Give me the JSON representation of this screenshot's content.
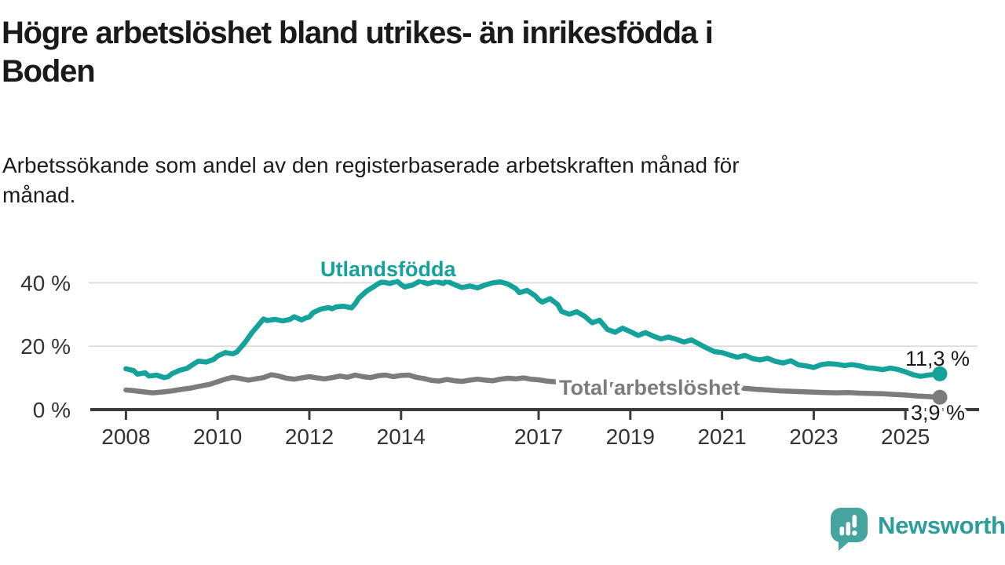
{
  "header": {
    "title": "Högre arbetslöshet bland utrikes- än inrikesfödda i\nBoden",
    "subtitle": "Arbetssökande som andel av den registerbaserade arbetskraften månad för\nmånad."
  },
  "chart_data": {
    "type": "line",
    "title": "Högre arbetslöshet bland utrikes- än inrikesfödda i Boden",
    "subtitle": "Arbetssökande som andel av den registerbaserade arbetskraften månad för månad.",
    "xlabel": "",
    "ylabel": "",
    "xlim": [
      2008,
      2025.75
    ],
    "ylim": [
      0,
      44
    ],
    "grid": "horizontal",
    "legend_position": "inline-labels",
    "x_ticks": [
      {
        "year": 2008,
        "label": "2008"
      },
      {
        "year": 2010,
        "label": "2010"
      },
      {
        "year": 2012,
        "label": "2012"
      },
      {
        "year": 2014,
        "label": "2014"
      },
      {
        "year": 2017,
        "label": "2017"
      },
      {
        "year": 2019,
        "label": "2019"
      },
      {
        "year": 2021,
        "label": "2021"
      },
      {
        "year": 2023,
        "label": "2023"
      },
      {
        "year": 2025,
        "label": "2025"
      }
    ],
    "y_ticks": [
      {
        "value": 0,
        "label": "0 %"
      },
      {
        "value": 20,
        "label": "20 %"
      },
      {
        "value": 40,
        "label": "40 %"
      }
    ],
    "series": [
      {
        "name": "Total arbetslöshet",
        "color": "#7c7c7c",
        "end_label": "3,9 %",
        "end_value": 3.9,
        "points": [
          [
            2008.0,
            6.2
          ],
          [
            2008.17,
            6.0
          ],
          [
            2008.33,
            5.7
          ],
          [
            2008.58,
            5.3
          ],
          [
            2008.83,
            5.6
          ],
          [
            2009.0,
            5.9
          ],
          [
            2009.17,
            6.3
          ],
          [
            2009.42,
            6.8
          ],
          [
            2009.58,
            7.3
          ],
          [
            2009.83,
            8.0
          ],
          [
            2010.0,
            8.8
          ],
          [
            2010.17,
            9.6
          ],
          [
            2010.33,
            10.2
          ],
          [
            2010.5,
            9.8
          ],
          [
            2010.67,
            9.3
          ],
          [
            2010.83,
            9.7
          ],
          [
            2011.0,
            10.1
          ],
          [
            2011.17,
            11.0
          ],
          [
            2011.33,
            10.6
          ],
          [
            2011.5,
            9.9
          ],
          [
            2011.67,
            9.6
          ],
          [
            2011.83,
            10.0
          ],
          [
            2012.0,
            10.4
          ],
          [
            2012.17,
            10.0
          ],
          [
            2012.33,
            9.7
          ],
          [
            2012.5,
            10.1
          ],
          [
            2012.67,
            10.6
          ],
          [
            2012.83,
            10.2
          ],
          [
            2013.0,
            10.9
          ],
          [
            2013.17,
            10.4
          ],
          [
            2013.33,
            10.1
          ],
          [
            2013.5,
            10.7
          ],
          [
            2013.67,
            10.9
          ],
          [
            2013.83,
            10.4
          ],
          [
            2014.0,
            10.8
          ],
          [
            2014.17,
            10.9
          ],
          [
            2014.33,
            10.2
          ],
          [
            2014.5,
            9.8
          ],
          [
            2014.67,
            9.2
          ],
          [
            2014.83,
            9.0
          ],
          [
            2015.0,
            9.5
          ],
          [
            2015.17,
            9.1
          ],
          [
            2015.33,
            8.9
          ],
          [
            2015.5,
            9.3
          ],
          [
            2015.67,
            9.6
          ],
          [
            2015.83,
            9.3
          ],
          [
            2016.0,
            9.1
          ],
          [
            2016.17,
            9.6
          ],
          [
            2016.33,
            9.9
          ],
          [
            2016.5,
            9.7
          ],
          [
            2016.67,
            10.0
          ],
          [
            2016.83,
            9.6
          ],
          [
            2017.0,
            9.4
          ],
          [
            2017.17,
            9.0
          ],
          [
            2017.33,
            8.8
          ],
          [
            2017.58,
            8.6
          ],
          [
            2017.83,
            8.4
          ],
          [
            2018.0,
            8.3
          ],
          [
            2018.25,
            8.1
          ],
          [
            2018.5,
            7.9
          ],
          [
            2018.75,
            7.8
          ],
          [
            2019.0,
            7.7
          ],
          [
            2019.25,
            7.6
          ],
          [
            2019.5,
            7.5
          ],
          [
            2019.75,
            7.4
          ],
          [
            2020.0,
            7.5
          ],
          [
            2020.25,
            7.8
          ],
          [
            2020.5,
            7.6
          ],
          [
            2020.75,
            7.3
          ],
          [
            2021.0,
            7.1
          ],
          [
            2021.25,
            6.9
          ],
          [
            2021.5,
            6.7
          ],
          [
            2021.75,
            6.4
          ],
          [
            2022.0,
            6.2
          ],
          [
            2022.17,
            6.0
          ],
          [
            2022.33,
            5.9
          ],
          [
            2022.5,
            5.8
          ],
          [
            2022.67,
            5.7
          ],
          [
            2022.83,
            5.6
          ],
          [
            2023.0,
            5.5
          ],
          [
            2023.25,
            5.4
          ],
          [
            2023.5,
            5.3
          ],
          [
            2023.75,
            5.4
          ],
          [
            2024.0,
            5.2
          ],
          [
            2024.25,
            5.1
          ],
          [
            2024.5,
            5.0
          ],
          [
            2024.75,
            4.8
          ],
          [
            2025.0,
            4.6
          ],
          [
            2025.25,
            4.3
          ],
          [
            2025.5,
            4.1
          ],
          [
            2025.75,
            3.9
          ]
        ]
      },
      {
        "name": "Utlandsfödda",
        "color": "#14a29b",
        "end_label": "11,3 %",
        "end_value": 11.3,
        "points": [
          [
            2008.0,
            12.9
          ],
          [
            2008.17,
            12.3
          ],
          [
            2008.25,
            11.2
          ],
          [
            2008.42,
            11.6
          ],
          [
            2008.5,
            10.6
          ],
          [
            2008.67,
            10.9
          ],
          [
            2008.83,
            10.1
          ],
          [
            2008.92,
            10.4
          ],
          [
            2009.0,
            11.3
          ],
          [
            2009.17,
            12.4
          ],
          [
            2009.33,
            13.0
          ],
          [
            2009.5,
            14.6
          ],
          [
            2009.58,
            15.3
          ],
          [
            2009.75,
            15.0
          ],
          [
            2009.92,
            15.9
          ],
          [
            2010.0,
            16.9
          ],
          [
            2010.17,
            18.0
          ],
          [
            2010.33,
            17.6
          ],
          [
            2010.42,
            18.2
          ],
          [
            2010.58,
            20.9
          ],
          [
            2010.75,
            24.3
          ],
          [
            2010.92,
            27.2
          ],
          [
            2011.0,
            28.6
          ],
          [
            2011.08,
            28.1
          ],
          [
            2011.25,
            28.5
          ],
          [
            2011.42,
            28.0
          ],
          [
            2011.58,
            28.5
          ],
          [
            2011.67,
            29.3
          ],
          [
            2011.83,
            28.3
          ],
          [
            2011.92,
            28.9
          ],
          [
            2012.0,
            29.2
          ],
          [
            2012.08,
            30.6
          ],
          [
            2012.25,
            31.7
          ],
          [
            2012.42,
            32.2
          ],
          [
            2012.5,
            31.8
          ],
          [
            2012.58,
            32.4
          ],
          [
            2012.75,
            32.6
          ],
          [
            2012.92,
            32.1
          ],
          [
            2013.0,
            33.4
          ],
          [
            2013.08,
            35.2
          ],
          [
            2013.25,
            37.4
          ],
          [
            2013.42,
            38.9
          ],
          [
            2013.5,
            39.7
          ],
          [
            2013.58,
            40.3
          ],
          [
            2013.75,
            39.8
          ],
          [
            2013.92,
            40.5
          ],
          [
            2014.0,
            39.4
          ],
          [
            2014.08,
            38.7
          ],
          [
            2014.25,
            39.3
          ],
          [
            2014.42,
            40.6
          ],
          [
            2014.5,
            40.1
          ],
          [
            2014.58,
            39.7
          ],
          [
            2014.75,
            40.4
          ],
          [
            2014.92,
            39.8
          ],
          [
            2015.0,
            40.5
          ],
          [
            2015.17,
            39.4
          ],
          [
            2015.33,
            38.5
          ],
          [
            2015.5,
            39.0
          ],
          [
            2015.67,
            38.4
          ],
          [
            2015.83,
            39.3
          ],
          [
            2016.0,
            40.0
          ],
          [
            2016.17,
            40.3
          ],
          [
            2016.33,
            39.6
          ],
          [
            2016.5,
            38.2
          ],
          [
            2016.58,
            36.9
          ],
          [
            2016.75,
            37.6
          ],
          [
            2016.92,
            36.0
          ],
          [
            2017.0,
            34.7
          ],
          [
            2017.08,
            33.9
          ],
          [
            2017.25,
            35.0
          ],
          [
            2017.42,
            33.1
          ],
          [
            2017.5,
            31.0
          ],
          [
            2017.67,
            30.1
          ],
          [
            2017.83,
            30.9
          ],
          [
            2018.0,
            29.5
          ],
          [
            2018.17,
            27.4
          ],
          [
            2018.33,
            28.2
          ],
          [
            2018.5,
            25.3
          ],
          [
            2018.67,
            24.4
          ],
          [
            2018.83,
            25.7
          ],
          [
            2019.0,
            24.6
          ],
          [
            2019.17,
            23.4
          ],
          [
            2019.33,
            24.3
          ],
          [
            2019.5,
            23.2
          ],
          [
            2019.67,
            22.3
          ],
          [
            2019.83,
            22.9
          ],
          [
            2020.0,
            22.2
          ],
          [
            2020.17,
            21.3
          ],
          [
            2020.33,
            22.0
          ],
          [
            2020.5,
            20.7
          ],
          [
            2020.67,
            19.4
          ],
          [
            2020.83,
            18.3
          ],
          [
            2021.0,
            18.0
          ],
          [
            2021.17,
            17.2
          ],
          [
            2021.33,
            16.5
          ],
          [
            2021.5,
            17.1
          ],
          [
            2021.67,
            16.1
          ],
          [
            2021.83,
            15.7
          ],
          [
            2022.0,
            16.2
          ],
          [
            2022.17,
            15.2
          ],
          [
            2022.33,
            14.7
          ],
          [
            2022.5,
            15.4
          ],
          [
            2022.67,
            14.1
          ],
          [
            2022.83,
            13.8
          ],
          [
            2023.0,
            13.3
          ],
          [
            2023.17,
            14.2
          ],
          [
            2023.33,
            14.5
          ],
          [
            2023.5,
            14.3
          ],
          [
            2023.67,
            13.9
          ],
          [
            2023.83,
            14.2
          ],
          [
            2024.0,
            13.8
          ],
          [
            2024.17,
            13.2
          ],
          [
            2024.33,
            13.0
          ],
          [
            2024.5,
            12.6
          ],
          [
            2024.67,
            13.1
          ],
          [
            2024.83,
            12.7
          ],
          [
            2025.0,
            11.9
          ],
          [
            2025.17,
            11.0
          ],
          [
            2025.33,
            10.5
          ],
          [
            2025.5,
            10.9
          ],
          [
            2025.75,
            11.3
          ]
        ]
      }
    ]
  },
  "footer": {
    "brand": "Newsworthy"
  },
  "colors": {
    "accent_teal": "#14a29b",
    "series_gray": "#7c7c7c",
    "axis": "#3b3b3b",
    "gridline": "#d9d9d9",
    "text": "#1a1a1a",
    "tick_text": "#333333",
    "logo_teal": "#46a49e",
    "brand_text_teal": "#2c9d99"
  }
}
